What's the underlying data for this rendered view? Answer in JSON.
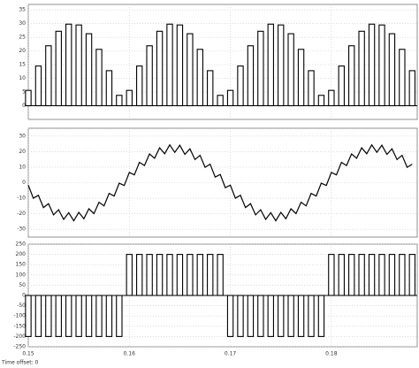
{
  "chart_data": [
    {
      "type": "bar",
      "color": "#000000",
      "grid": true,
      "x": [
        0.15,
        0.151,
        0.152,
        0.153,
        0.154,
        0.155,
        0.156,
        0.157,
        0.158,
        0.159,
        0.16,
        0.161,
        0.162,
        0.163,
        0.164,
        0.165,
        0.166,
        0.167,
        0.168,
        0.169,
        0.17,
        0.171,
        0.172,
        0.173,
        0.174,
        0.175,
        0.176,
        0.177,
        0.178,
        0.179,
        0.18,
        0.181,
        0.182,
        0.183,
        0.184,
        0.185,
        0.186,
        0.187,
        0.188
      ],
      "values": [
        5.6,
        14.5,
        21.9,
        27.2,
        29.8,
        29.5,
        26.3,
        20.6,
        12.8,
        3.8,
        5.6,
        14.5,
        21.9,
        27.2,
        29.8,
        29.5,
        26.3,
        20.6,
        12.8,
        3.8,
        5.6,
        14.5,
        21.9,
        27.2,
        29.8,
        29.5,
        26.3,
        20.6,
        12.8,
        3.8,
        5.6,
        14.5,
        21.9,
        27.2,
        29.8,
        29.5,
        26.3,
        20.6,
        12.8
      ],
      "ylim": [
        -5,
        37
      ],
      "yticks": [
        0,
        5,
        10,
        15,
        20,
        25,
        30,
        35
      ]
    },
    {
      "type": "line",
      "color": "#000000",
      "grid": true,
      "x": [
        0.15,
        0.1505,
        0.151,
        0.1515,
        0.152,
        0.1525,
        0.153,
        0.1535,
        0.154,
        0.1545,
        0.155,
        0.1555,
        0.156,
        0.1565,
        0.157,
        0.1575,
        0.158,
        0.1585,
        0.159,
        0.1595,
        0.16,
        0.1605,
        0.161,
        0.1615,
        0.162,
        0.1625,
        0.163,
        0.1635,
        0.164,
        0.1645,
        0.165,
        0.1655,
        0.166,
        0.1665,
        0.167,
        0.1675,
        0.168,
        0.1685,
        0.169,
        0.1695,
        0.17,
        0.1705,
        0.171,
        0.1715,
        0.172,
        0.1725,
        0.173,
        0.1735,
        0.174,
        0.1745,
        0.175,
        0.1755,
        0.176,
        0.1765,
        0.177,
        0.1775,
        0.178,
        0.1785,
        0.179,
        0.1795,
        0.18,
        0.1805,
        0.181,
        0.1815,
        0.182,
        0.1825,
        0.183,
        0.1835,
        0.184,
        0.1845,
        0.185,
        0.1855,
        0.186,
        0.1865,
        0.187,
        0.1875,
        0.188
      ],
      "values": [
        -1.6,
        -10,
        -8.1,
        -16,
        -13.5,
        -20.7,
        -17.4,
        -23.6,
        -19.3,
        -24.5,
        -19.1,
        -23.2,
        -16.8,
        -19.9,
        -12.6,
        -14.9,
        -6.9,
        -8.6,
        -0.3,
        -1.8,
        6.6,
        5,
        13.1,
        11,
        18.5,
        15.7,
        22.4,
        18.6,
        24.3,
        19.5,
        24.1,
        18.2,
        21.8,
        14.9,
        17.6,
        9.9,
        11.9,
        3.6,
        5.3,
        -3.2,
        -1.6,
        -10,
        -8.1,
        -16,
        -13.5,
        -20.7,
        -17.4,
        -23.6,
        -19.3,
        -24.5,
        -19.1,
        -23.2,
        -16.8,
        -19.9,
        -12.6,
        -14.9,
        -6.9,
        -8.6,
        -0.3,
        -1.8,
        6.6,
        5,
        13.1,
        11,
        18.5,
        15.7,
        22.4,
        18.6,
        24.3,
        19.5,
        24.1,
        18.2,
        21.8,
        14.9,
        17.6,
        9.9,
        11.9
      ],
      "ylim": [
        -35,
        35
      ],
      "yticks": [
        -30,
        -20,
        -10,
        0,
        10,
        20,
        30
      ]
    },
    {
      "type": "bar",
      "color": "#000000",
      "grid": true,
      "x": [
        0.15,
        0.151,
        0.152,
        0.153,
        0.154,
        0.155,
        0.156,
        0.157,
        0.158,
        0.159,
        0.16,
        0.161,
        0.162,
        0.163,
        0.164,
        0.165,
        0.166,
        0.167,
        0.168,
        0.169,
        0.17,
        0.171,
        0.172,
        0.173,
        0.174,
        0.175,
        0.176,
        0.177,
        0.178,
        0.179,
        0.18,
        0.181,
        0.182,
        0.183,
        0.184,
        0.185,
        0.186,
        0.187,
        0.188
      ],
      "values": [
        -200,
        -200,
        -200,
        -200,
        -200,
        -200,
        -200,
        -200,
        -200,
        -200,
        200,
        200,
        200,
        200,
        200,
        200,
        200,
        200,
        200,
        200,
        -200,
        -200,
        -200,
        -200,
        -200,
        -200,
        -200,
        -200,
        -200,
        -200,
        200,
        200,
        200,
        200,
        200,
        200,
        200,
        200,
        200
      ],
      "ylim": [
        -250,
        250
      ],
      "yticks": [
        -250,
        -200,
        -150,
        -100,
        -50,
        0,
        50,
        100,
        150,
        200,
        250
      ],
      "xlim": [
        0.15,
        0.1885
      ],
      "xticks": [
        0.15,
        0.16,
        0.17,
        0.18
      ]
    }
  ],
  "time_offset_label": "Time offset:  0"
}
